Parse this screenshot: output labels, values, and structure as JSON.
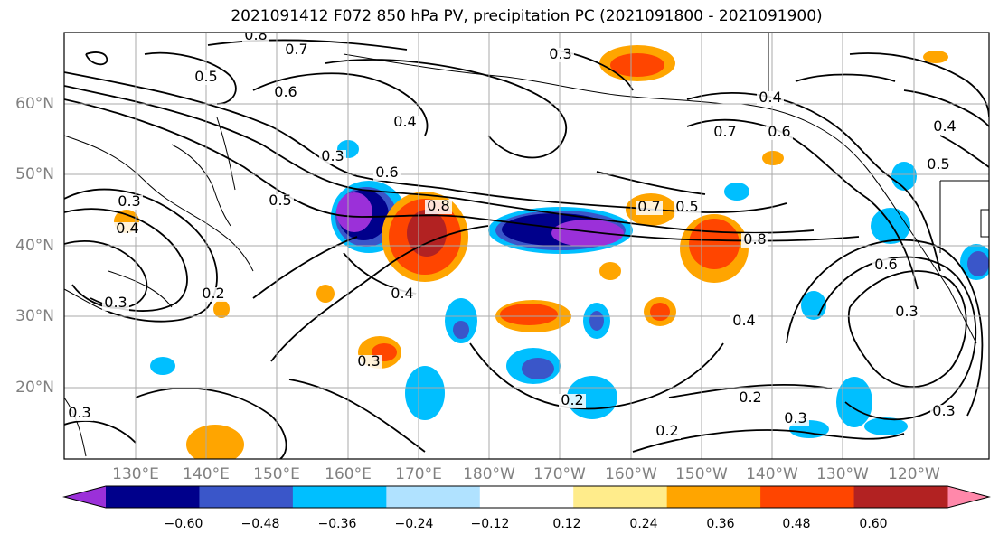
{
  "title": "2021091412 F072 850 hPa PV, precipitation PC (2021091800 - 2021091900)",
  "map": {
    "lat_labels": [
      "60°N",
      "50°N",
      "40°N",
      "30°N",
      "20°N"
    ],
    "lon_labels": [
      "130°E",
      "140°E",
      "150°E",
      "160°E",
      "170°E",
      "180°W",
      "170°W",
      "160°W",
      "150°W",
      "140°W",
      "130°W",
      "120°W"
    ]
  },
  "colorbar": {
    "ticks": [
      "−0.60",
      "−0.48",
      "−0.36",
      "−0.24",
      "−0.12",
      "0.12",
      "0.24",
      "0.36",
      "0.48",
      "0.60"
    ],
    "colors": [
      "#9b30d9",
      "#00008b",
      "#3a56c9",
      "#00bfff",
      "#b0e2ff",
      "#ffffff",
      "#ffec8b",
      "#ffa500",
      "#ff4500",
      "#b22222",
      "#ff88aa"
    ]
  },
  "contour_labels": [
    {
      "text": "0.8"
    },
    {
      "text": "0.7"
    },
    {
      "text": "0.5"
    },
    {
      "text": "0.6"
    },
    {
      "text": "0.4"
    },
    {
      "text": "0.3"
    },
    {
      "text": "0.3"
    },
    {
      "text": "0.4"
    },
    {
      "text": "0.5"
    },
    {
      "text": "0.6"
    },
    {
      "text": "0.8"
    },
    {
      "text": "0.7"
    },
    {
      "text": "0.5"
    },
    {
      "text": "0.8"
    },
    {
      "text": "0.7"
    },
    {
      "text": "0.6"
    },
    {
      "text": "0.4"
    },
    {
      "text": "0.4"
    },
    {
      "text": "0.4"
    },
    {
      "text": "0.3"
    },
    {
      "text": "0.2"
    },
    {
      "text": "0.3"
    },
    {
      "text": "0.2"
    },
    {
      "text": "0.2"
    },
    {
      "text": "0.6"
    },
    {
      "text": "0.3"
    },
    {
      "text": "0.5"
    },
    {
      "text": "0.4"
    },
    {
      "text": "0.3"
    },
    {
      "text": "0.3"
    },
    {
      "text": "0.3"
    },
    {
      "text": "0.2"
    },
    {
      "text": "0.3"
    }
  ]
}
